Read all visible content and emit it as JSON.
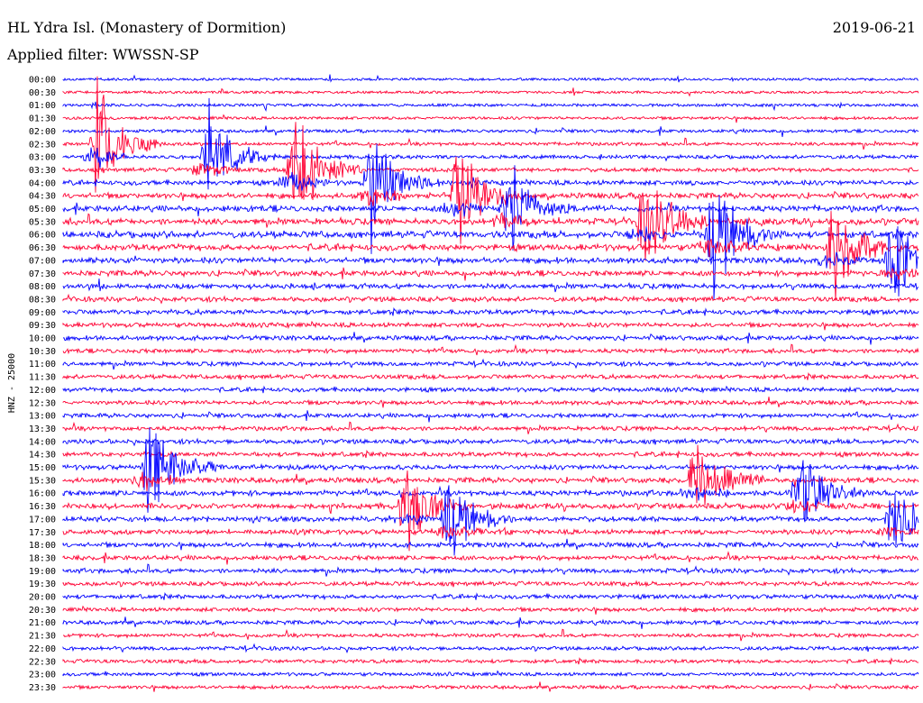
{
  "header": {
    "station": "HL Ydra Isl. (Monastery of Dormition)",
    "date": "2019-06-21",
    "filter": "Applied filter: WWSSN-SP"
  },
  "chart_data": {
    "type": "line",
    "title": "HL Ydra Isl. (Monastery of Dormition)",
    "subtitle": "Applied filter: WWSSN-SP",
    "date": "2019-06-21",
    "ylabel": "HNZ - 25000",
    "xlabel": "",
    "grid": false,
    "trace_colors": [
      "#0000ff",
      "#ff0033"
    ],
    "row_labels": [
      "00:00",
      "00:30",
      "01:00",
      "01:30",
      "02:00",
      "02:30",
      "03:00",
      "03:30",
      "04:00",
      "04:30",
      "05:00",
      "05:30",
      "06:00",
      "06:30",
      "07:00",
      "07:30",
      "08:00",
      "08:30",
      "09:00",
      "09:30",
      "10:00",
      "10:30",
      "11:00",
      "11:30",
      "12:00",
      "12:30",
      "13:00",
      "13:30",
      "14:00",
      "14:30",
      "15:00",
      "15:30",
      "16:00",
      "16:30",
      "17:00",
      "17:30",
      "18:00",
      "18:30",
      "19:00",
      "19:30",
      "20:00",
      "20:30",
      "21:00",
      "21:30",
      "22:00",
      "22:30",
      "23:00",
      "23:30"
    ],
    "row_activity": [
      0.05,
      0.05,
      0.1,
      0.1,
      0.15,
      0.2,
      0.25,
      0.3,
      0.45,
      0.55,
      0.65,
      0.7,
      0.75,
      0.7,
      0.6,
      0.55,
      0.5,
      0.45,
      0.45,
      0.4,
      0.4,
      0.35,
      0.35,
      0.35,
      0.35,
      0.35,
      0.35,
      0.35,
      0.4,
      0.4,
      0.45,
      0.5,
      0.55,
      0.55,
      0.5,
      0.45,
      0.45,
      0.4,
      0.4,
      0.35,
      0.35,
      0.3,
      0.3,
      0.25,
      0.25,
      0.25,
      0.2,
      0.2
    ],
    "events": [
      {
        "row": 5,
        "x_fraction": 0.04,
        "amplitude": 1.0
      },
      {
        "row": 6,
        "x_fraction": 0.17,
        "amplitude": 0.9
      },
      {
        "row": 7,
        "x_fraction": 0.27,
        "amplitude": 0.9
      },
      {
        "row": 8,
        "x_fraction": 0.36,
        "amplitude": 1.0
      },
      {
        "row": 9,
        "x_fraction": 0.46,
        "amplitude": 0.9
      },
      {
        "row": 10,
        "x_fraction": 0.52,
        "amplitude": 0.8
      },
      {
        "row": 11,
        "x_fraction": 0.68,
        "amplitude": 0.9
      },
      {
        "row": 12,
        "x_fraction": 0.76,
        "amplitude": 1.0
      },
      {
        "row": 13,
        "x_fraction": 0.9,
        "amplitude": 0.9
      },
      {
        "row": 14,
        "x_fraction": 0.97,
        "amplitude": 0.7
      },
      {
        "row": 30,
        "x_fraction": 0.1,
        "amplitude": 0.8
      },
      {
        "row": 31,
        "x_fraction": 0.74,
        "amplitude": 0.7
      },
      {
        "row": 32,
        "x_fraction": 0.86,
        "amplitude": 0.7
      },
      {
        "row": 33,
        "x_fraction": 0.4,
        "amplitude": 0.7
      },
      {
        "row": 34,
        "x_fraction": 0.45,
        "amplitude": 0.7
      },
      {
        "row": 34,
        "x_fraction": 0.97,
        "amplitude": 0.6
      }
    ]
  }
}
